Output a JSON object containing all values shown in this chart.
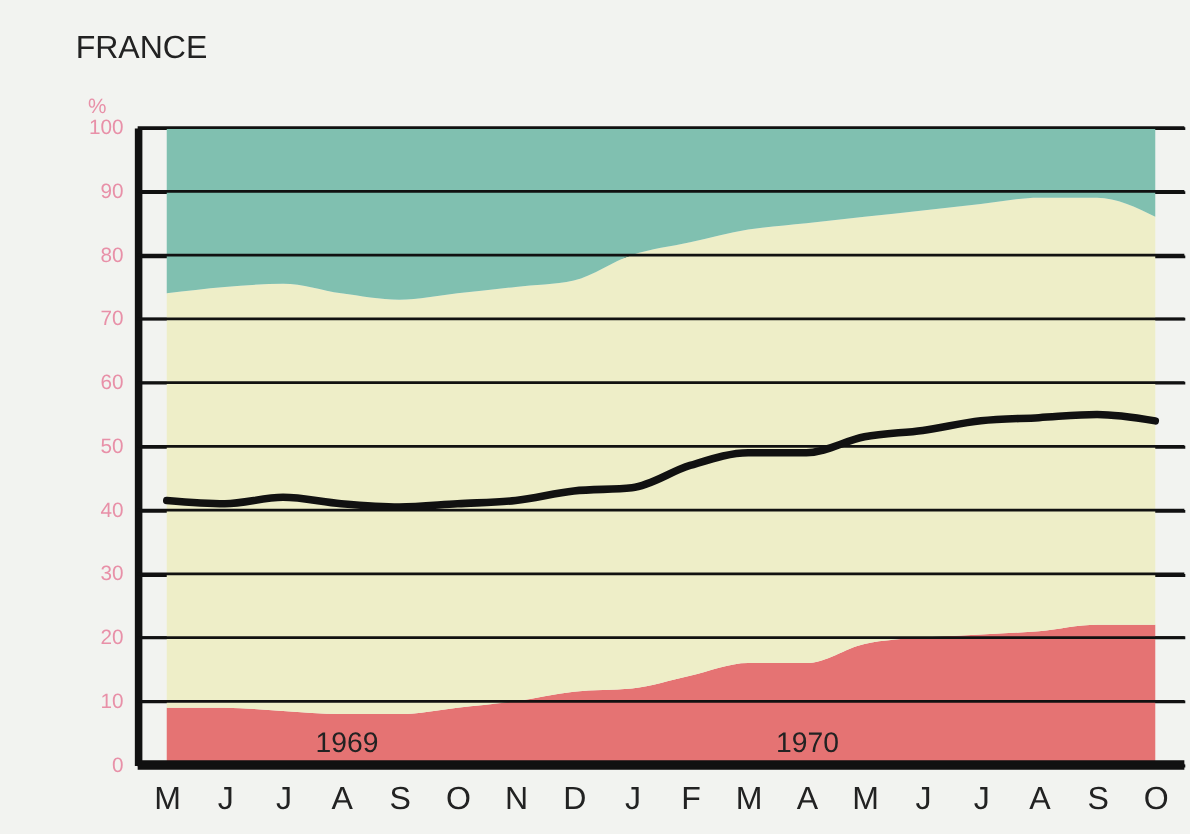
{
  "chart_data": {
    "type": "area",
    "title": "FRANCE",
    "ylabel": "%",
    "stacked": true,
    "grid": "y",
    "legend": false,
    "categories": [
      "M",
      "J",
      "J",
      "A",
      "S",
      "O",
      "N",
      "D",
      "J",
      "F",
      "M",
      "A",
      "M",
      "J",
      "J",
      "A",
      "S",
      "O"
    ],
    "ylim": [
      0,
      100
    ],
    "yticks": [
      0,
      10,
      20,
      30,
      40,
      50,
      60,
      70,
      80,
      90,
      100
    ],
    "annotations": [
      "1969",
      "1970"
    ],
    "series": [
      {
        "color": "#e57373",
        "values": [
          9,
          9,
          8.5,
          8,
          8,
          9,
          10,
          11.5,
          12,
          14,
          16,
          16,
          19,
          20,
          20.5,
          21,
          22,
          22
        ]
      },
      {
        "color": "#eeeec8",
        "values": [
          65,
          66,
          67,
          66,
          65,
          65,
          65,
          64.5,
          68,
          68,
          68,
          69,
          67,
          67,
          67.5,
          68,
          67,
          64
        ]
      },
      {
        "color": "#80c0b0",
        "values": [
          26,
          25,
          24.5,
          26,
          27,
          26,
          25,
          24,
          20,
          18,
          16,
          15,
          14,
          13,
          12,
          11,
          11,
          14
        ]
      },
      {
        "type": "line",
        "color": "#111111",
        "values": [
          41.5,
          41,
          42,
          41,
          40.5,
          41,
          41.5,
          43,
          43.5,
          47,
          49,
          49,
          51.5,
          52.5,
          54,
          54.5,
          55,
          54
        ]
      }
    ]
  }
}
